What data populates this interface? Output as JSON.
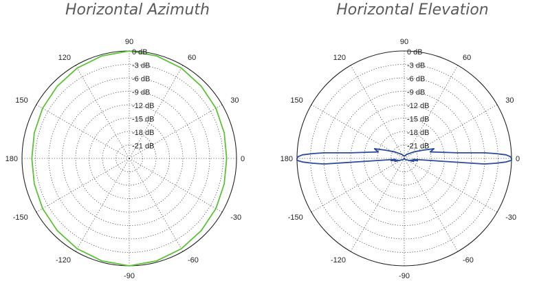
{
  "chart_data": [
    {
      "type": "polar",
      "title": "Horizontal Azimuth",
      "angle_unit": "degrees",
      "angle_tick_labels": [
        "0",
        "30",
        "60",
        "90",
        "120",
        "150",
        "180",
        "-150",
        "-120",
        "-90",
        "-60",
        "-30"
      ],
      "angle_ticks": [
        0,
        30,
        60,
        90,
        120,
        150,
        180,
        -150,
        -120,
        -90,
        -60,
        -30
      ],
      "radial_tick_labels": [
        "0 dB",
        "-3 dB",
        "-6 dB",
        "-9 dB",
        "-12 dB",
        "-15 dB",
        "-18 dB",
        "-21 dB"
      ],
      "radial_ticks": [
        0,
        -3,
        -6,
        -9,
        -12,
        -15,
        -18,
        -21
      ],
      "rlim": [
        -24,
        0
      ],
      "grid": "dotted",
      "series": [
        {
          "color": "#5bc236",
          "theta": [
            0,
            15,
            30,
            45,
            60,
            75,
            90,
            105,
            120,
            135,
            150,
            165,
            180,
            195,
            210,
            225,
            240,
            255,
            270,
            285,
            300,
            315,
            330,
            345
          ],
          "r": [
            -2.2,
            -2.0,
            -1.6,
            -1.2,
            -0.7,
            -0.3,
            0.0,
            -0.3,
            -0.7,
            -1.2,
            -1.6,
            -2.0,
            -2.2,
            -2.0,
            -1.6,
            -1.2,
            -0.7,
            -0.3,
            0.0,
            -0.3,
            -0.7,
            -1.2,
            -1.6,
            -2.0
          ]
        }
      ]
    },
    {
      "type": "polar",
      "title": "Horizontal Elevation",
      "angle_unit": "degrees",
      "angle_tick_labels": [
        "0",
        "30",
        "60",
        "90",
        "120",
        "150",
        "180",
        "-150",
        "-120",
        "-90",
        "-60",
        "-30"
      ],
      "angle_ticks": [
        0,
        30,
        60,
        90,
        120,
        150,
        180,
        -150,
        -120,
        -90,
        -60,
        -30
      ],
      "radial_tick_labels": [
        "0 dB",
        "-3 dB",
        "-6 dB",
        "-9 dB",
        "-12 dB",
        "-15 dB",
        "-18 dB",
        "-21 dB"
      ],
      "radial_ticks": [
        0,
        -3,
        -6,
        -9,
        -12,
        -15,
        -18,
        -21
      ],
      "rlim": [
        -24,
        0
      ],
      "grid": "dotted",
      "series": [
        {
          "color": "#2b4a9c",
          "theta": [
            -6,
            -4,
            -3,
            -2,
            -1,
            0,
            1,
            2,
            3,
            4,
            6,
            10,
            14,
            18,
            24,
            35,
            60,
            90,
            120,
            145,
            156,
            162,
            166,
            170,
            174,
            176,
            177,
            178,
            179,
            180,
            181,
            182,
            183,
            184,
            186,
            190,
            194,
            198,
            204,
            215,
            240,
            270,
            300,
            325,
            336,
            342,
            346,
            350,
            354
          ],
          "r": [
            -22.0,
            -6.0,
            -3.5,
            -1.2,
            0.0,
            0.0,
            -0.3,
            -1.2,
            -3.5,
            -6.0,
            -12.0,
            -16.0,
            -18.0,
            -17.0,
            -19.5,
            -21.5,
            -23.0,
            -23.5,
            -23.0,
            -21.5,
            -19.5,
            -17.0,
            -18.0,
            -16.0,
            -12.0,
            -6.0,
            -3.5,
            -1.2,
            -0.3,
            0.0,
            0.0,
            -1.2,
            -3.5,
            -6.0,
            -22.0,
            -21.0,
            -22.5,
            -21.8,
            -23.0,
            -23.5,
            -23.8,
            -24.0,
            -23.8,
            -23.5,
            -23.0,
            -21.8,
            -22.5,
            -21.0,
            -22.0
          ]
        }
      ]
    }
  ]
}
